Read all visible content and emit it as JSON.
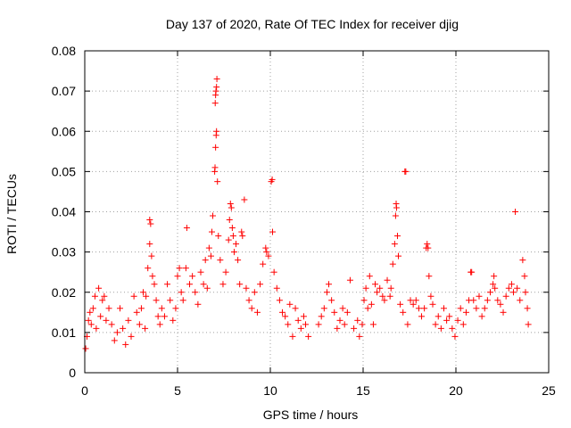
{
  "chart_data": {
    "type": "scatter",
    "title": "Day 137 of 2020, Rate Of TEC Index for receiver djig",
    "xlabel": "GPS time / hours",
    "ylabel": "ROTI / TECUs",
    "xlim": [
      0,
      25
    ],
    "ylim": [
      0,
      0.08
    ],
    "grid": true,
    "marker": "+",
    "color": "#ff0000",
    "x_ticks": [
      0,
      5,
      10,
      15,
      20,
      25
    ],
    "x_tick_labels": [
      "0",
      "5",
      "10",
      "15",
      "20",
      "25"
    ],
    "y_ticks": [
      0,
      0.01,
      0.02,
      0.03,
      0.04,
      0.05,
      0.06,
      0.07,
      0.08
    ],
    "y_tick_labels": [
      "0",
      "0.01",
      "0.02",
      "0.03",
      "0.04",
      "0.05",
      "0.06",
      "0.07",
      "0.08"
    ],
    "series": [
      {
        "name": "ROTI",
        "points": [
          [
            0.05,
            0.006
          ],
          [
            0.12,
            0.009
          ],
          [
            0.2,
            0.013
          ],
          [
            0.28,
            0.015
          ],
          [
            0.35,
            0.012
          ],
          [
            0.45,
            0.016
          ],
          [
            0.55,
            0.019
          ],
          [
            0.62,
            0.011
          ],
          [
            0.75,
            0.021
          ],
          [
            0.85,
            0.014
          ],
          [
            0.95,
            0.018
          ],
          [
            1.05,
            0.019
          ],
          [
            1.15,
            0.013
          ],
          [
            1.3,
            0.016
          ],
          [
            1.45,
            0.012
          ],
          [
            1.6,
            0.008
          ],
          [
            1.75,
            0.01
          ],
          [
            1.9,
            0.016
          ],
          [
            2.05,
            0.011
          ],
          [
            2.2,
            0.007
          ],
          [
            2.35,
            0.013
          ],
          [
            2.5,
            0.009
          ],
          [
            2.65,
            0.019
          ],
          [
            2.8,
            0.015
          ],
          [
            2.95,
            0.012
          ],
          [
            3.05,
            0.016
          ],
          [
            3.15,
            0.02
          ],
          [
            3.25,
            0.011
          ],
          [
            3.3,
            0.019
          ],
          [
            3.4,
            0.026
          ],
          [
            3.5,
            0.038
          ],
          [
            3.55,
            0.037
          ],
          [
            3.5,
            0.032
          ],
          [
            3.6,
            0.029
          ],
          [
            3.65,
            0.024
          ],
          [
            3.75,
            0.022
          ],
          [
            3.85,
            0.018
          ],
          [
            3.95,
            0.014
          ],
          [
            4.05,
            0.012
          ],
          [
            4.15,
            0.016
          ],
          [
            4.3,
            0.014
          ],
          [
            4.45,
            0.022
          ],
          [
            4.6,
            0.018
          ],
          [
            4.75,
            0.013
          ],
          [
            4.9,
            0.016
          ],
          [
            5.0,
            0.024
          ],
          [
            5.1,
            0.026
          ],
          [
            5.2,
            0.02
          ],
          [
            5.3,
            0.018
          ],
          [
            5.45,
            0.026
          ],
          [
            5.5,
            0.036
          ],
          [
            5.65,
            0.022
          ],
          [
            5.8,
            0.024
          ],
          [
            5.95,
            0.02
          ],
          [
            6.1,
            0.017
          ],
          [
            6.25,
            0.025
          ],
          [
            6.4,
            0.022
          ],
          [
            6.5,
            0.028
          ],
          [
            6.6,
            0.021
          ],
          [
            6.7,
            0.031
          ],
          [
            6.8,
            0.029
          ],
          [
            6.85,
            0.035
          ],
          [
            6.9,
            0.039
          ],
          [
            7.0,
            0.05
          ],
          [
            7.02,
            0.051
          ],
          [
            7.05,
            0.056
          ],
          [
            7.08,
            0.059
          ],
          [
            7.1,
            0.06
          ],
          [
            7.03,
            0.067
          ],
          [
            7.05,
            0.069
          ],
          [
            7.07,
            0.07
          ],
          [
            7.1,
            0.071
          ],
          [
            7.12,
            0.073
          ],
          [
            7.15,
            0.0475
          ],
          [
            7.2,
            0.034
          ],
          [
            7.3,
            0.028
          ],
          [
            7.45,
            0.022
          ],
          [
            7.6,
            0.025
          ],
          [
            7.75,
            0.033
          ],
          [
            7.8,
            0.038
          ],
          [
            7.85,
            0.042
          ],
          [
            7.9,
            0.041
          ],
          [
            7.95,
            0.036
          ],
          [
            8.0,
            0.034
          ],
          [
            8.05,
            0.03
          ],
          [
            8.15,
            0.032
          ],
          [
            8.25,
            0.028
          ],
          [
            8.35,
            0.022
          ],
          [
            8.45,
            0.035
          ],
          [
            8.5,
            0.034
          ],
          [
            8.6,
            0.043
          ],
          [
            8.7,
            0.021
          ],
          [
            8.85,
            0.018
          ],
          [
            9.0,
            0.016
          ],
          [
            9.15,
            0.02
          ],
          [
            9.3,
            0.015
          ],
          [
            9.45,
            0.022
          ],
          [
            9.6,
            0.027
          ],
          [
            9.75,
            0.031
          ],
          [
            9.8,
            0.03
          ],
          [
            9.9,
            0.029
          ],
          [
            10.05,
            0.0475
          ],
          [
            10.1,
            0.048
          ],
          [
            10.12,
            0.035
          ],
          [
            10.2,
            0.025
          ],
          [
            10.35,
            0.021
          ],
          [
            10.5,
            0.018
          ],
          [
            10.65,
            0.015
          ],
          [
            10.8,
            0.014
          ],
          [
            10.95,
            0.012
          ],
          [
            11.05,
            0.017
          ],
          [
            11.2,
            0.009
          ],
          [
            11.35,
            0.016
          ],
          [
            11.5,
            0.013
          ],
          [
            11.65,
            0.011
          ],
          [
            11.8,
            0.014
          ],
          [
            11.9,
            0.012
          ],
          [
            12.05,
            0.009
          ],
          [
            12.6,
            0.012
          ],
          [
            12.75,
            0.014
          ],
          [
            12.9,
            0.016
          ],
          [
            13.05,
            0.02
          ],
          [
            13.15,
            0.022
          ],
          [
            13.3,
            0.018
          ],
          [
            13.45,
            0.015
          ],
          [
            13.6,
            0.011
          ],
          [
            13.75,
            0.013
          ],
          [
            13.9,
            0.016
          ],
          [
            14.0,
            0.012
          ],
          [
            14.15,
            0.015
          ],
          [
            14.3,
            0.023
          ],
          [
            14.5,
            0.011
          ],
          [
            14.7,
            0.013
          ],
          [
            14.8,
            0.009
          ],
          [
            14.95,
            0.012
          ],
          [
            15.05,
            0.018
          ],
          [
            15.15,
            0.021
          ],
          [
            15.25,
            0.016
          ],
          [
            15.35,
            0.024
          ],
          [
            15.45,
            0.017
          ],
          [
            15.55,
            0.012
          ],
          [
            15.65,
            0.022
          ],
          [
            15.75,
            0.02
          ],
          [
            15.9,
            0.021
          ],
          [
            16.05,
            0.019
          ],
          [
            16.15,
            0.018
          ],
          [
            16.3,
            0.023
          ],
          [
            16.45,
            0.019
          ],
          [
            16.5,
            0.021
          ],
          [
            16.6,
            0.027
          ],
          [
            16.7,
            0.032
          ],
          [
            16.75,
            0.039
          ],
          [
            16.78,
            0.042
          ],
          [
            16.8,
            0.041
          ],
          [
            16.85,
            0.034
          ],
          [
            16.9,
            0.029
          ],
          [
            17.0,
            0.017
          ],
          [
            17.15,
            0.015
          ],
          [
            17.25,
            0.05
          ],
          [
            17.3,
            0.05
          ],
          [
            17.4,
            0.012
          ],
          [
            17.55,
            0.018
          ],
          [
            17.7,
            0.017
          ],
          [
            17.85,
            0.018
          ],
          [
            18.0,
            0.016
          ],
          [
            18.15,
            0.014
          ],
          [
            18.3,
            0.016
          ],
          [
            18.4,
            0.031
          ],
          [
            18.45,
            0.032
          ],
          [
            18.5,
            0.031
          ],
          [
            18.55,
            0.024
          ],
          [
            18.65,
            0.019
          ],
          [
            18.75,
            0.017
          ],
          [
            18.9,
            0.012
          ],
          [
            19.05,
            0.014
          ],
          [
            19.2,
            0.011
          ],
          [
            19.35,
            0.016
          ],
          [
            19.5,
            0.013
          ],
          [
            19.65,
            0.014
          ],
          [
            19.8,
            0.011
          ],
          [
            19.95,
            0.009
          ],
          [
            20.1,
            0.013
          ],
          [
            20.25,
            0.016
          ],
          [
            20.4,
            0.012
          ],
          [
            20.55,
            0.015
          ],
          [
            20.7,
            0.018
          ],
          [
            20.8,
            0.025
          ],
          [
            20.85,
            0.025
          ],
          [
            20.95,
            0.018
          ],
          [
            21.1,
            0.016
          ],
          [
            21.25,
            0.019
          ],
          [
            21.4,
            0.014
          ],
          [
            21.55,
            0.016
          ],
          [
            21.7,
            0.018
          ],
          [
            21.85,
            0.02
          ],
          [
            22.0,
            0.022
          ],
          [
            22.05,
            0.024
          ],
          [
            22.1,
            0.021
          ],
          [
            22.25,
            0.018
          ],
          [
            22.4,
            0.017
          ],
          [
            22.55,
            0.015
          ],
          [
            22.7,
            0.019
          ],
          [
            22.85,
            0.021
          ],
          [
            23.0,
            0.022
          ],
          [
            23.1,
            0.02
          ],
          [
            23.2,
            0.04
          ],
          [
            23.3,
            0.021
          ],
          [
            23.45,
            0.018
          ],
          [
            23.6,
            0.028
          ],
          [
            23.7,
            0.024
          ],
          [
            23.75,
            0.02
          ],
          [
            23.85,
            0.016
          ],
          [
            23.9,
            0.012
          ]
        ]
      }
    ]
  }
}
